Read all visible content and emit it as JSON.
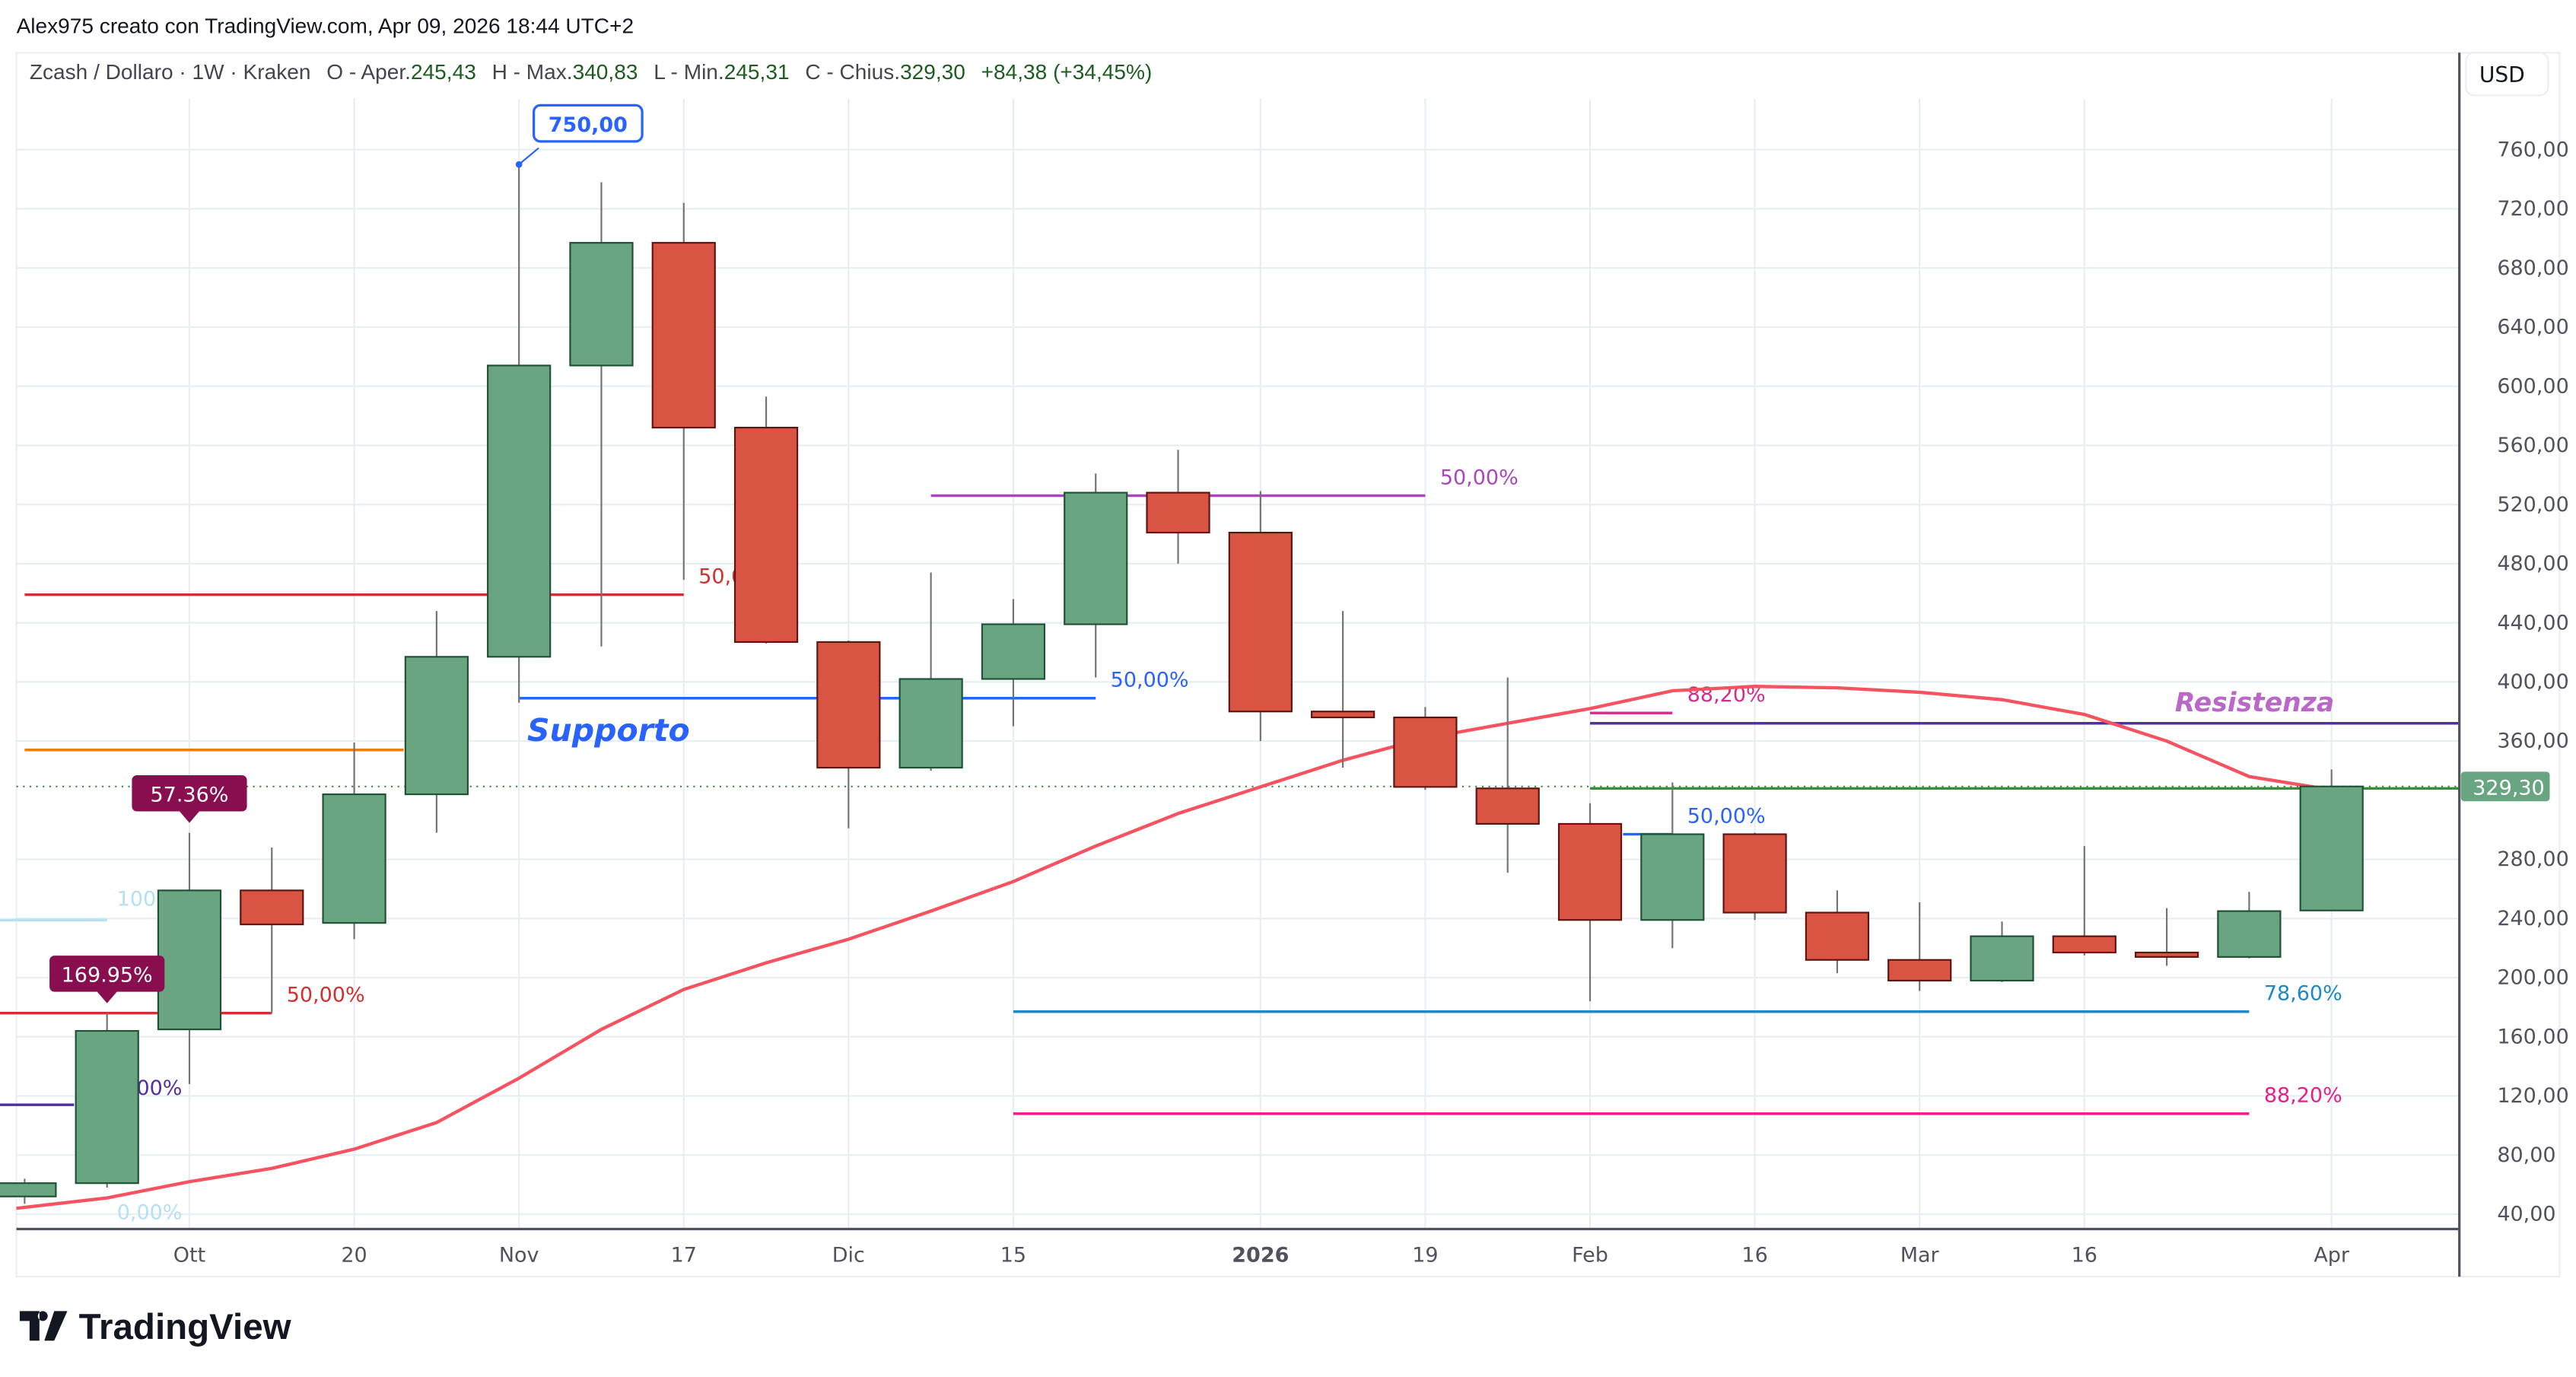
{
  "header": {
    "attribution": "Alex975 creato con TradingView.com, Apr 09, 2026 18:44 UTC+2",
    "symbol": "Zcash / Dollaro · 1W · Kraken",
    "open_label": "O - Aper.",
    "open": "245,43",
    "high_label": "H - Max.",
    "high": "340,83",
    "low_label": "L - Min.",
    "low": "245,31",
    "close_label": "C - Chius.",
    "close": "329,30",
    "change": "+84,38 (+34,45%)"
  },
  "currency_button": "USD",
  "logo_text": "TradingView",
  "colors": {
    "up": "#6aa582",
    "up_border": "#1f5135",
    "down": "#d95443",
    "down_border": "#5e1410",
    "ma": "#f7525f",
    "grid": "#e6eef4",
    "callout": "#880e4f"
  },
  "chart_data": {
    "type": "candlestick",
    "title": "Zcash / Dollaro · 1W · Kraken",
    "ylim": [
      30,
      790
    ],
    "yticks": [
      "760,00",
      "720,00",
      "680,00",
      "640,00",
      "600,00",
      "560,00",
      "520,00",
      "480,00",
      "440,00",
      "400,00",
      "360,00",
      "280,00",
      "240,00",
      "200,00",
      "160,00",
      "120,00",
      "80,00",
      "40,00"
    ],
    "ytick_values": [
      760,
      720,
      680,
      640,
      600,
      560,
      520,
      480,
      440,
      400,
      360,
      280,
      240,
      200,
      160,
      120,
      80,
      40
    ],
    "xticks": [
      {
        "label": "Ott",
        "index": 2,
        "bold": false
      },
      {
        "label": "20",
        "index": 4,
        "bold": false
      },
      {
        "label": "Nov",
        "index": 6,
        "bold": false
      },
      {
        "label": "17",
        "index": 8,
        "bold": false
      },
      {
        "label": "Dic",
        "index": 10,
        "bold": false
      },
      {
        "label": "15",
        "index": 12,
        "bold": false
      },
      {
        "label": "2026",
        "index": 15,
        "bold": true
      },
      {
        "label": "19",
        "index": 17,
        "bold": false
      },
      {
        "label": "Feb",
        "index": 19,
        "bold": false
      },
      {
        "label": "16",
        "index": 21,
        "bold": false
      },
      {
        "label": "Mar",
        "index": 23,
        "bold": false
      },
      {
        "label": "16",
        "index": 25,
        "bold": false
      },
      {
        "label": "Apr",
        "index": 28,
        "bold": false
      }
    ],
    "candles": [
      [
        52,
        64,
        47,
        61
      ],
      [
        61,
        176,
        58,
        164
      ],
      [
        165,
        298,
        128,
        259
      ],
      [
        259,
        288,
        176,
        236
      ],
      [
        237,
        359,
        226,
        324
      ],
      [
        324,
        448,
        298,
        417
      ],
      [
        417,
        750,
        386,
        614
      ],
      [
        614,
        738,
        424,
        697
      ],
      [
        697,
        724,
        469,
        572
      ],
      [
        572,
        593,
        426,
        427
      ],
      [
        427,
        428,
        301,
        342
      ],
      [
        342,
        474,
        340,
        402
      ],
      [
        402,
        456,
        370,
        439
      ],
      [
        439,
        541,
        403,
        528
      ],
      [
        528,
        557,
        480,
        501
      ],
      [
        501,
        529,
        360,
        380
      ],
      [
        380,
        448,
        342,
        376
      ],
      [
        376,
        383,
        327,
        329
      ],
      [
        328,
        403,
        271,
        304
      ],
      [
        304,
        318,
        184,
        239
      ],
      [
        239,
        332,
        220,
        297
      ],
      [
        297,
        298,
        239,
        244
      ],
      [
        244,
        259,
        203,
        212
      ],
      [
        212,
        251,
        191,
        198
      ],
      [
        198,
        238,
        197,
        228
      ],
      [
        228,
        289,
        215,
        217
      ],
      [
        217,
        247,
        208,
        214
      ],
      [
        214,
        258,
        213,
        245
      ],
      [
        245.43,
        340.83,
        245.31,
        329.3
      ]
    ],
    "candle_format": "open, high, low, close",
    "moving_average": [
      44,
      51,
      62,
      71,
      84,
      102,
      132,
      165,
      192,
      210,
      226,
      245,
      265,
      289,
      311,
      329,
      347,
      362,
      372,
      382,
      394,
      397,
      396,
      393,
      388,
      378,
      360,
      336,
      327
    ],
    "last_price_label": "329,30",
    "levels": [
      {
        "price": 459,
        "from": 0,
        "to": 8,
        "color": "#d32f2f",
        "label": "50,00%"
      },
      {
        "price": 354,
        "from": 0,
        "to": 4.6,
        "color": "#f57c00",
        "label": ""
      },
      {
        "price": 239,
        "from": -0.3,
        "to": 1,
        "color": "#b3e0f2",
        "label": ""
      },
      {
        "price": 176,
        "from": -0.3,
        "to": 3,
        "color": "#d32f2f",
        "label": "50,00%"
      },
      {
        "price": 114,
        "from": -0.3,
        "to": 0.6,
        "color": "#512da8",
        "label": ""
      },
      {
        "price": 389,
        "from": 6,
        "to": 13,
        "color": "#2962ff",
        "label": "50,00%"
      },
      {
        "price": 526,
        "from": 11,
        "to": 17,
        "color": "#ab47bc",
        "label": "50,00%"
      },
      {
        "price": 379,
        "from": 19,
        "to": 20,
        "color": "#d02c8f",
        "label": "88,20%"
      },
      {
        "price": 372,
        "from": 19,
        "to": 29.6,
        "color": "#512da8",
        "label": ""
      },
      {
        "price": 328,
        "from": 19,
        "to": 29.6,
        "color": "#388e3c",
        "label": ""
      },
      {
        "price": 297,
        "from": 19.4,
        "to": 20,
        "color": "#2962ff",
        "label": "50,00%"
      },
      {
        "price": 177,
        "from": 12,
        "to": 27,
        "color": "#1e88c8",
        "label": "78,60%"
      },
      {
        "price": 108,
        "from": 12,
        "to": 27,
        "color": "#e91e8c",
        "label": "88,20%"
      }
    ],
    "faded_labels": [
      {
        "text": "100",
        "price": 242,
        "index": 1.2,
        "color": "#b3e0f2"
      },
      {
        "text": "0,00%",
        "price": 114,
        "index": 1.2,
        "color": "#512da8"
      },
      {
        "text": "0,00%",
        "price": 30,
        "index": 1.2,
        "color": "#b3e0f2"
      }
    ],
    "callouts": [
      {
        "text": "169.95%",
        "index": 1,
        "price": 176
      },
      {
        "text": "57.36%",
        "index": 2,
        "price": 298
      }
    ],
    "price_note": {
      "text": "750,00",
      "index": 6,
      "price": 750
    },
    "annotations": [
      {
        "text": "Supporto",
        "index": 6.1,
        "price": 360,
        "color": "#2962ff",
        "size": 19
      },
      {
        "text": "Resistenza",
        "index": 26.1,
        "price": 380,
        "color": "#ba68c8",
        "size": 16
      }
    ]
  }
}
